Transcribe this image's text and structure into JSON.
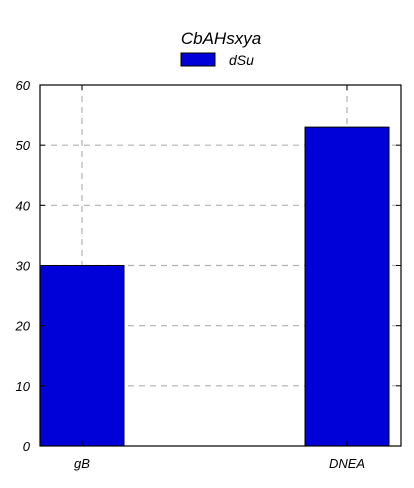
{
  "chart_data": {
    "type": "bar",
    "title": "CbAHsxya",
    "xlabel": "",
    "ylabel": "",
    "categories": [
      "gB",
      "DNEA"
    ],
    "series": [
      {
        "name": "dSu",
        "values": [
          30,
          53
        ],
        "color": "#0000d8"
      }
    ],
    "ylim": [
      0,
      60
    ],
    "yticks": [
      0,
      10,
      20,
      30,
      40,
      50,
      60
    ],
    "grid": true,
    "legend_position": "top-center"
  }
}
